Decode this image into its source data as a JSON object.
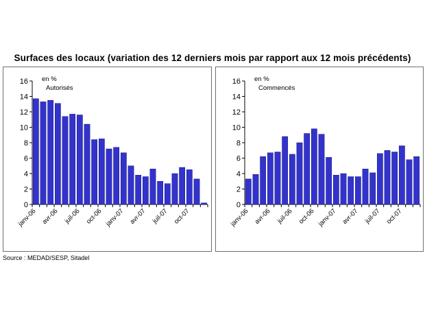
{
  "title": "Surfaces des locaux (variation des 12 derniers mois par rapport aux 12 mois précédents)",
  "source": "Source : MEDAD/SESP, Sitadel",
  "colors": {
    "bar": "#3333cc",
    "bar_edge": "#000066",
    "axis": "#000000",
    "frame": "#6e6e6e"
  },
  "chart_data": [
    {
      "type": "bar",
      "unit": "en %",
      "series_label": "Autorisés",
      "ylim": [
        0,
        16
      ],
      "yticks": [
        0,
        2,
        4,
        6,
        8,
        10,
        12,
        14,
        16
      ],
      "grid": false,
      "x_tick_labels": [
        "janv-06",
        "avr-06",
        "juil-06",
        "oct-06",
        "janv-07",
        "avr-07",
        "juil-07",
        "oct-07"
      ],
      "values": [
        13.7,
        13.3,
        13.5,
        13.1,
        11.4,
        11.7,
        11.6,
        10.4,
        8.4,
        8.5,
        7.2,
        7.4,
        6.7,
        5.0,
        3.8,
        3.6,
        4.6,
        3.0,
        2.7,
        4.0,
        4.8,
        4.5,
        3.3,
        0.2
      ]
    },
    {
      "type": "bar",
      "unit": "en %",
      "series_label": "Commencés",
      "ylim": [
        0,
        16
      ],
      "yticks": [
        0,
        2,
        4,
        6,
        8,
        10,
        12,
        14,
        16
      ],
      "grid": false,
      "x_tick_labels": [
        "janv-06",
        "avr-06",
        "juil-06",
        "oct-06",
        "janv-07",
        "avr-07",
        "juil-07",
        "oct-07"
      ],
      "values": [
        3.3,
        3.9,
        6.2,
        6.7,
        6.8,
        8.8,
        6.5,
        8.0,
        9.2,
        9.8,
        9.1,
        6.1,
        3.8,
        4.0,
        3.6,
        3.6,
        4.6,
        4.1,
        6.6,
        7.0,
        6.8,
        7.6,
        5.8,
        6.2
      ]
    }
  ]
}
